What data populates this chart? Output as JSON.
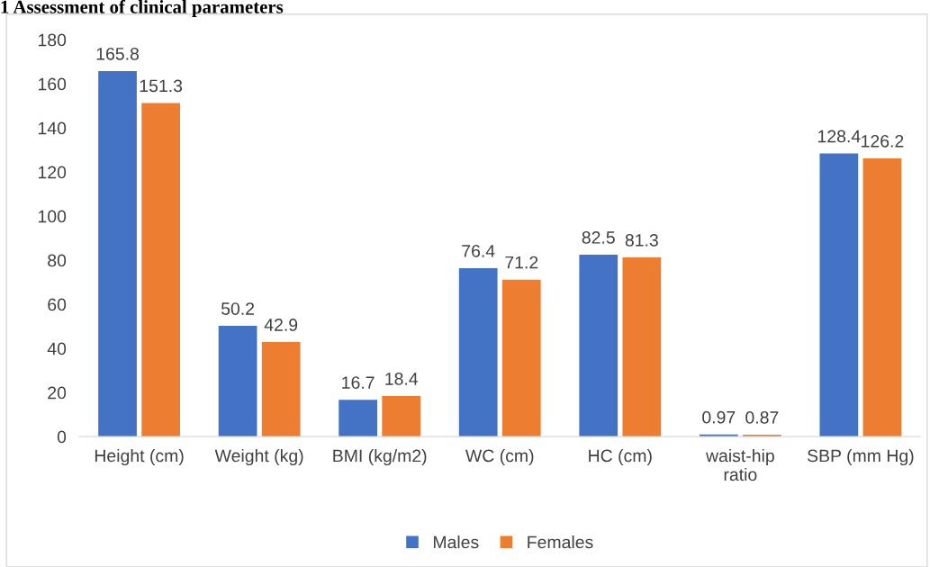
{
  "chart_data": {
    "type": "bar",
    "title": "1 Assessment of clinical parameters",
    "categories": [
      "Height (cm)",
      "Weight (kg)",
      "BMI (kg/m2)",
      "WC (cm)",
      "HC (cm)",
      "waist-hip ratio",
      "SBP (mm Hg)"
    ],
    "series": [
      {
        "name": "Males",
        "color": "#4472c4",
        "values": [
          165.8,
          50.2,
          16.7,
          76.4,
          82.5,
          0.97,
          128.4
        ]
      },
      {
        "name": "Females",
        "color": "#ed7d31",
        "values": [
          151.3,
          42.9,
          18.4,
          71.2,
          81.3,
          0.87,
          126.2
        ]
      }
    ],
    "ylim": [
      0,
      180
    ],
    "yticks": [
      0,
      20,
      40,
      60,
      80,
      100,
      120,
      140,
      160,
      180
    ],
    "grid": false,
    "legend": "bottom",
    "data_labels": true
  }
}
